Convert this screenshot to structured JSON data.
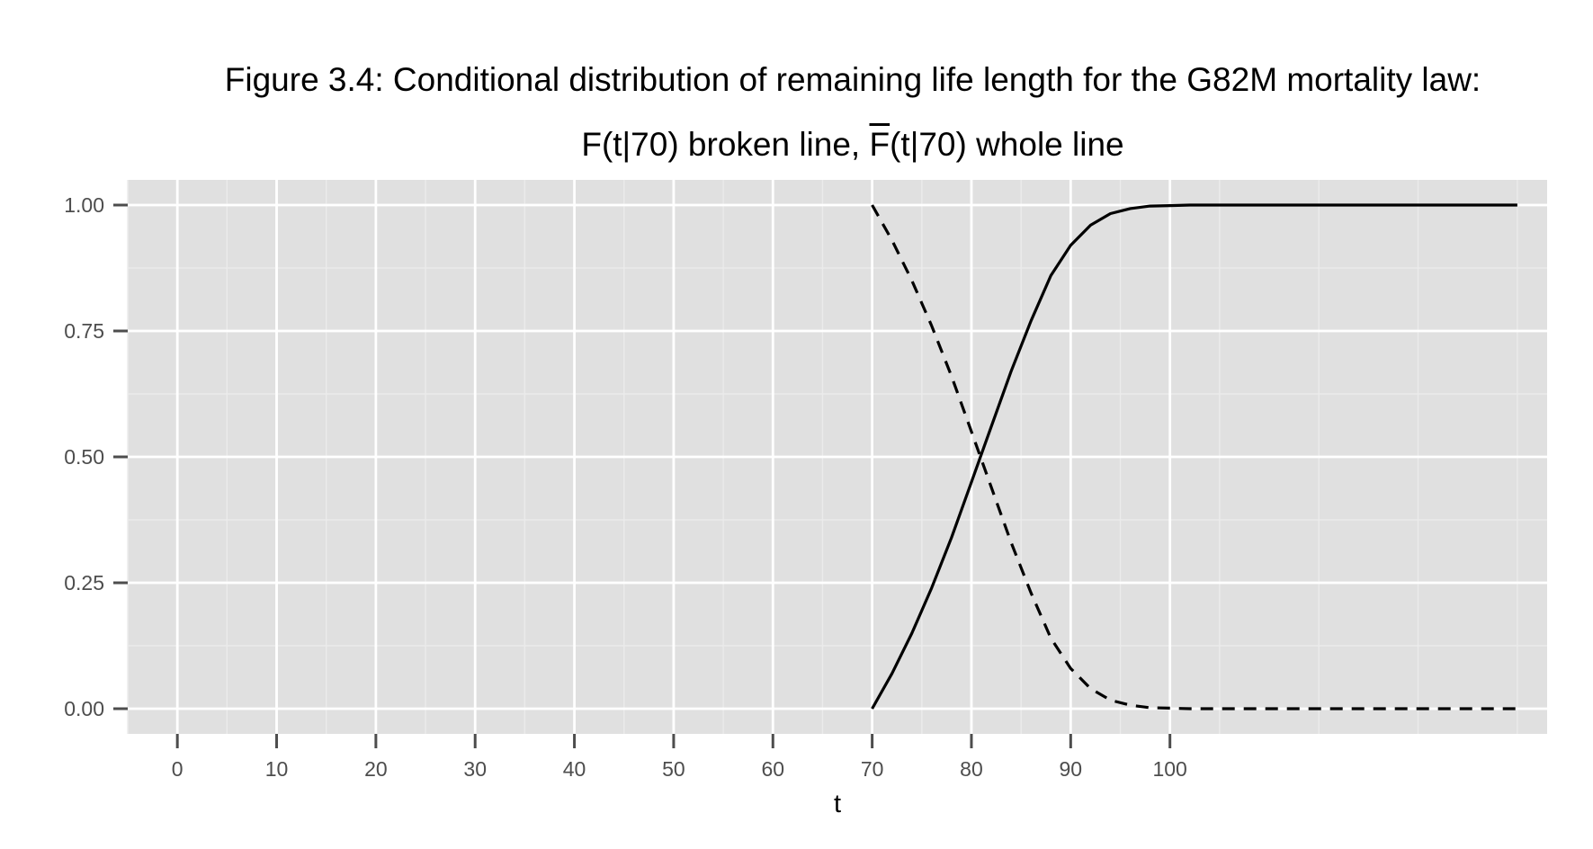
{
  "chart_data": {
    "type": "line",
    "title_line1": "Figure 3.4: Conditional distribution of remaining life length for the G82M mortality law:",
    "title_line2_a": "F(t|70) broken line, ",
    "title_line2_b": "F",
    "title_line2_c": "(t|70) whole line",
    "xlabel": "t",
    "ylabel": "",
    "xlim": [
      -5,
      138
    ],
    "ylim": [
      -0.05,
      1.05
    ],
    "x_ticks": [
      0,
      10,
      20,
      30,
      40,
      50,
      60,
      70,
      80,
      90,
      100
    ],
    "x_tick_labels": [
      "0",
      "10",
      "20",
      "30",
      "40",
      "50",
      "60",
      "70",
      "80",
      "90",
      "100"
    ],
    "y_ticks": [
      0,
      0.25,
      0.5,
      0.75,
      1.0
    ],
    "y_tick_labels": [
      "0.00",
      "0.25",
      "0.50",
      "0.75",
      "1.00"
    ],
    "grid": true,
    "x": [
      70,
      72,
      74,
      76,
      78,
      80,
      82,
      84,
      86,
      88,
      90,
      92,
      94,
      96,
      98,
      100,
      102,
      104,
      106,
      110,
      115,
      120,
      125,
      130,
      135
    ],
    "series": [
      {
        "style": "solid",
        "values": [
          0.0,
          0.07,
          0.15,
          0.24,
          0.34,
          0.45,
          0.56,
          0.67,
          0.77,
          0.86,
          0.92,
          0.96,
          0.983,
          0.993,
          0.998,
          0.999,
          1.0,
          1.0,
          1.0,
          1.0,
          1.0,
          1.0,
          1.0,
          1.0,
          1.0
        ]
      },
      {
        "style": "dashed",
        "values": [
          1.0,
          0.93,
          0.85,
          0.76,
          0.66,
          0.55,
          0.44,
          0.33,
          0.23,
          0.14,
          0.08,
          0.04,
          0.017,
          0.007,
          0.002,
          0.001,
          0.0,
          0.0,
          0.0,
          0.0,
          0.0,
          0.0,
          0.0,
          0.0,
          0.0
        ]
      }
    ]
  },
  "colors": {
    "panel": "#e0e0e0",
    "grid_major": "#ffffff",
    "grid_minor": "#ebebeb",
    "line": "#000000",
    "tick": "#4d4d4d"
  }
}
